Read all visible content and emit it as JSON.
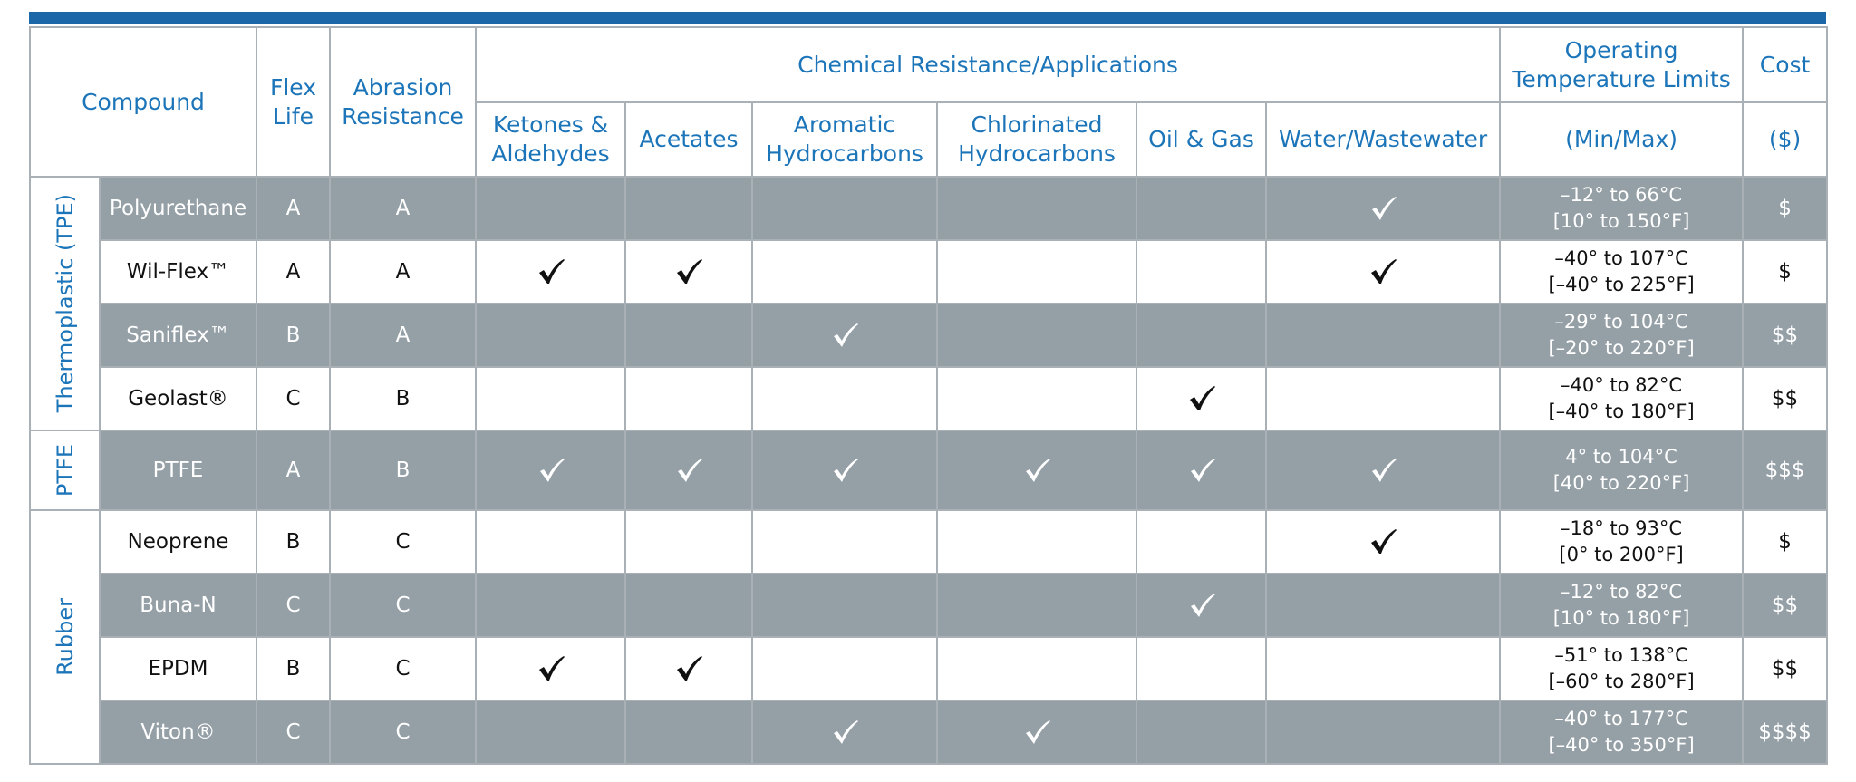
{
  "header": {
    "compound": "Compound",
    "flex_life": "Flex Life",
    "abrasion": "Abrasion Resistance",
    "chemical": "Chemical Resistance/Applications",
    "chemical_columns": [
      "Ketones & Aldehydes",
      "Acetates",
      "Aromatic Hydrocarbons",
      "Chlorinated Hydrocarbons",
      "Oil & Gas",
      "Water/Wastewater"
    ],
    "temperature": "Operating Temperature Limits",
    "temperature_sub": "(Min/Max)",
    "cost": "Cost",
    "cost_sub": "($)"
  },
  "groups": [
    {
      "label": "Thermoplastic (TPE)",
      "rows": [
        {
          "compound": "Polyurethane",
          "flex_life": "A",
          "abrasion": "A",
          "checks": [
            false,
            false,
            false,
            false,
            false,
            true
          ],
          "temp_c": "–12° to 66°C",
          "temp_f": "[10° to 150°F]",
          "cost": "$",
          "shaded": true
        },
        {
          "compound": "Wil-Flex™",
          "flex_life": "A",
          "abrasion": "A",
          "checks": [
            true,
            true,
            false,
            false,
            false,
            true
          ],
          "temp_c": "–40° to 107°C",
          "temp_f": "[–40° to 225°F]",
          "cost": "$",
          "shaded": false
        },
        {
          "compound": "Saniflex™",
          "flex_life": "B",
          "abrasion": "A",
          "checks": [
            false,
            false,
            true,
            false,
            false,
            false
          ],
          "temp_c": "–29° to 104°C",
          "temp_f": "[–20° to 220°F]",
          "cost": "$$",
          "shaded": true
        },
        {
          "compound": "Geolast®",
          "flex_life": "C",
          "abrasion": "B",
          "checks": [
            false,
            false,
            false,
            false,
            true,
            false
          ],
          "temp_c": "–40° to 82°C",
          "temp_f": "[–40° to 180°F]",
          "cost": "$$",
          "shaded": false
        }
      ]
    },
    {
      "label": "PTFE",
      "rows": [
        {
          "compound": "PTFE",
          "flex_life": "A",
          "abrasion": "B",
          "checks": [
            true,
            true,
            true,
            true,
            true,
            true
          ],
          "temp_c": "4° to 104°C",
          "temp_f": "[40° to 220°F]",
          "cost": "$$$",
          "shaded": true
        }
      ]
    },
    {
      "label": "Rubber",
      "rows": [
        {
          "compound": "Neoprene",
          "flex_life": "B",
          "abrasion": "C",
          "checks": [
            false,
            false,
            false,
            false,
            false,
            true
          ],
          "temp_c": "–18° to 93°C",
          "temp_f": "[0° to 200°F]",
          "cost": "$",
          "shaded": false
        },
        {
          "compound": "Buna-N",
          "flex_life": "C",
          "abrasion": "C",
          "checks": [
            false,
            false,
            false,
            false,
            true,
            false
          ],
          "temp_c": "–12° to 82°C",
          "temp_f": "[10° to 180°F]",
          "cost": "$$",
          "shaded": true
        },
        {
          "compound": "EPDM",
          "flex_life": "B",
          "abrasion": "C",
          "checks": [
            true,
            true,
            false,
            false,
            false,
            false
          ],
          "temp_c": "–51° to 138°C",
          "temp_f": "[–60° to 280°F]",
          "cost": "$$",
          "shaded": false
        },
        {
          "compound": "Viton®",
          "flex_life": "C",
          "abrasion": "C",
          "checks": [
            false,
            false,
            true,
            true,
            false,
            false
          ],
          "temp_c": "–40° to 177°C",
          "temp_f": "[–40° to 350°F]",
          "cost": "$$$$",
          "shaded": true
        }
      ]
    }
  ]
}
